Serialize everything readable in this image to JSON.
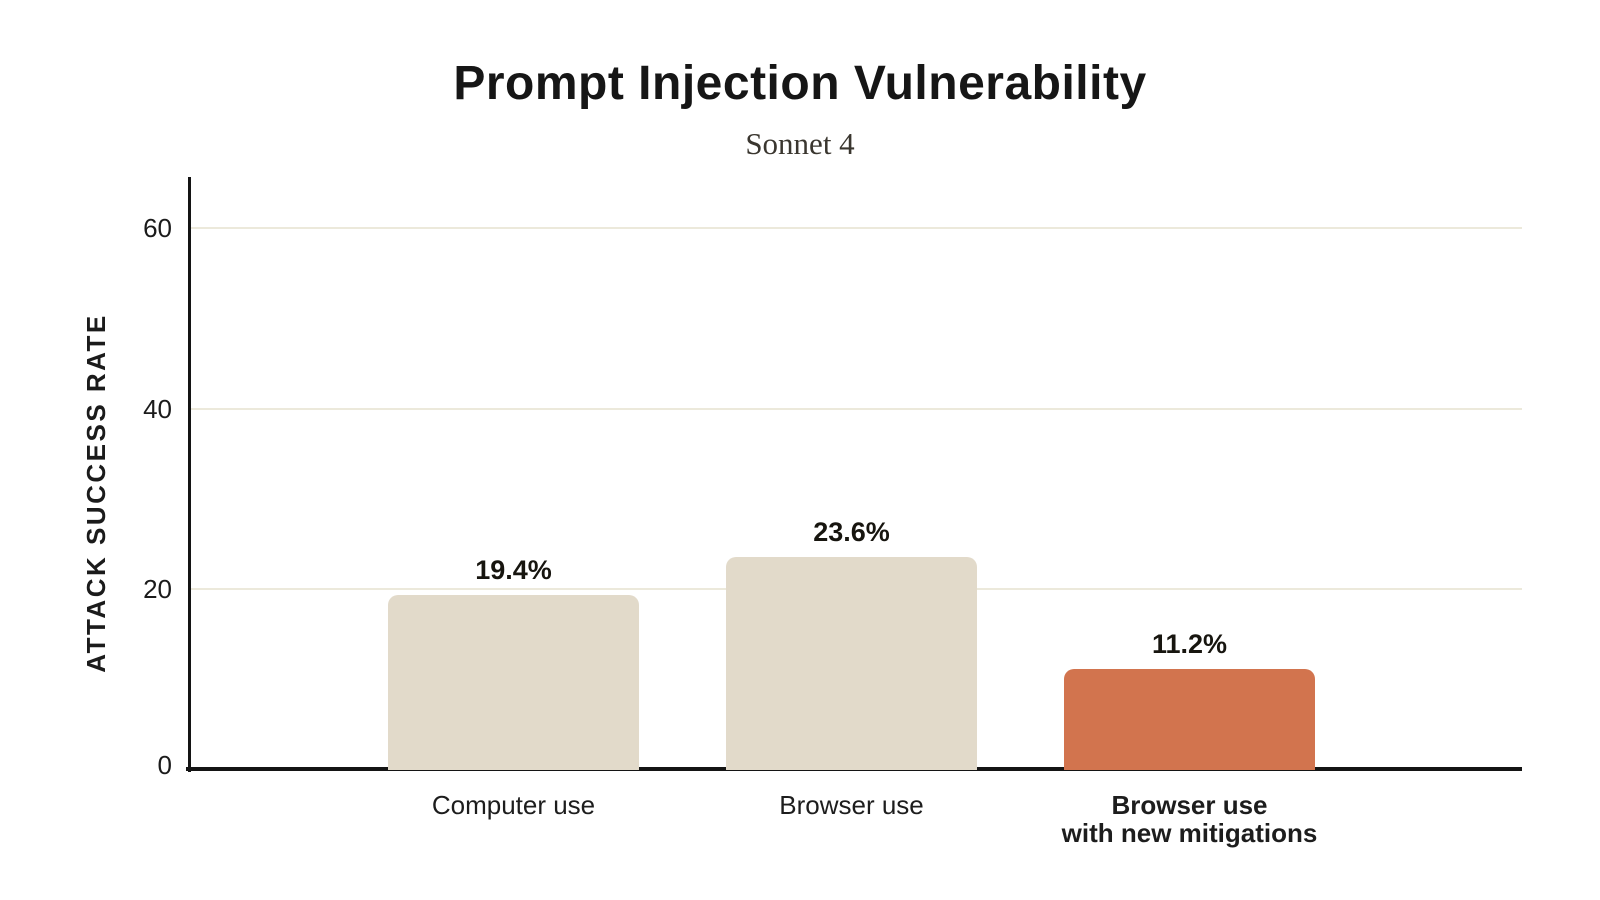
{
  "header": {
    "title": "Prompt Injection Vulnerability",
    "subtitle": "Sonnet 4"
  },
  "chart_data": {
    "type": "bar",
    "title": "Prompt Injection Vulnerability",
    "subtitle": "Sonnet 4",
    "xlabel": "",
    "ylabel": "ATTACK SUCCESS RATE",
    "categories": [
      "Computer use",
      "Browser use",
      "Browser use with new mitigations"
    ],
    "category_lines": [
      [
        "Computer use"
      ],
      [
        "Browser use"
      ],
      [
        "Browser use",
        "with new mitigations"
      ]
    ],
    "values": [
      19.4,
      23.6,
      11.2
    ],
    "value_labels": [
      "19.4%",
      "23.6%",
      "11.2%"
    ],
    "yticks": [
      0,
      20,
      40,
      60
    ],
    "ylim": [
      0,
      66
    ],
    "grid": "horizontal-only",
    "legend": "none",
    "bar_colors": [
      "#E2DACA",
      "#E2DACA",
      "#D2744E"
    ],
    "emphasized_category_index": 2,
    "colors": {
      "default_bar": "#E2DACA",
      "highlight_bar": "#D2744E",
      "gridline": "#ECE9DB",
      "axis": "#141414",
      "text": "#1B1B1B",
      "subtitle_text": "#3A362F"
    }
  }
}
